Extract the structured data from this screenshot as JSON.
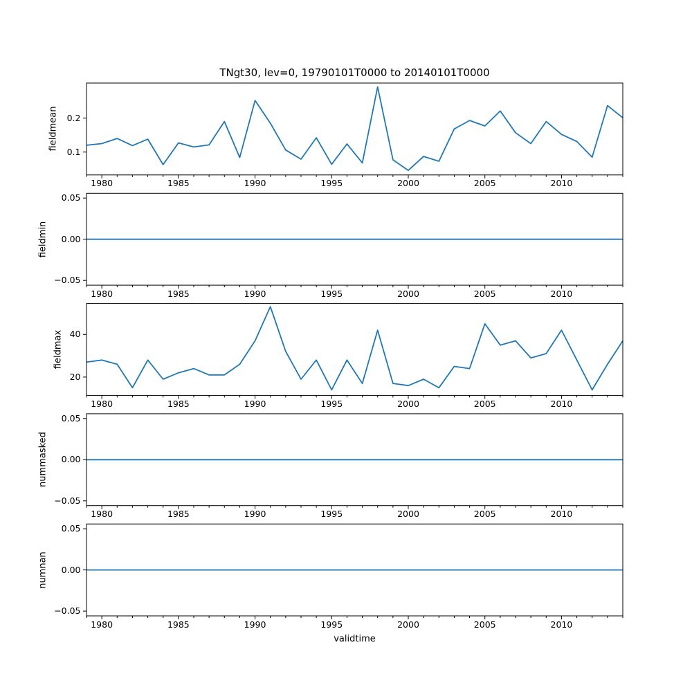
{
  "figure": {
    "title": "TNgt30, lev=0, 19790101T0000 to 20140101T0000",
    "background_color": "#ffffff",
    "line_color": "#1f77b4",
    "axis_color": "#000000"
  },
  "x": {
    "label": "validtime",
    "lim": [
      1979,
      2014
    ],
    "values": [
      1979,
      1980,
      1981,
      1982,
      1983,
      1984,
      1985,
      1986,
      1987,
      1988,
      1989,
      1990,
      1991,
      1992,
      1993,
      1994,
      1995,
      1996,
      1997,
      1998,
      1999,
      2000,
      2001,
      2002,
      2003,
      2004,
      2005,
      2006,
      2007,
      2008,
      2009,
      2010,
      2011,
      2012,
      2013,
      2014
    ],
    "major_ticks": [
      1980,
      1985,
      1990,
      1995,
      2000,
      2005,
      2010
    ],
    "tick_labels": [
      "1980",
      "1985",
      "1990",
      "1995",
      "2000",
      "2005",
      "2010"
    ],
    "minor_tick_step": 1
  },
  "chart_data": [
    {
      "type": "line",
      "name": "fieldmean",
      "ylabel": "fieldmean",
      "ylim": [
        0.0325,
        0.3035
      ],
      "yticks": [
        0.1,
        0.2
      ],
      "ytick_labels": [
        "0.1",
        "0.2"
      ],
      "values": [
        0.12,
        0.125,
        0.14,
        0.119,
        0.138,
        0.063,
        0.127,
        0.115,
        0.121,
        0.19,
        0.084,
        0.252,
        0.185,
        0.106,
        0.079,
        0.142,
        0.064,
        0.124,
        0.068,
        0.292,
        0.077,
        0.046,
        0.087,
        0.073,
        0.168,
        0.193,
        0.177,
        0.221,
        0.157,
        0.125,
        0.19,
        0.152,
        0.131,
        0.085,
        0.237,
        0.201
      ]
    },
    {
      "type": "line",
      "name": "fieldmin",
      "ylabel": "fieldmin",
      "ylim": [
        -0.0558,
        0.0558
      ],
      "yticks": [
        -0.05,
        0.0,
        0.05
      ],
      "ytick_labels": [
        "−0.05",
        "0.00",
        "0.05"
      ],
      "values": [
        0,
        0,
        0,
        0,
        0,
        0,
        0,
        0,
        0,
        0,
        0,
        0,
        0,
        0,
        0,
        0,
        0,
        0,
        0,
        0,
        0,
        0,
        0,
        0,
        0,
        0,
        0,
        0,
        0,
        0,
        0,
        0,
        0,
        0,
        0,
        0
      ]
    },
    {
      "type": "line",
      "name": "fieldmax",
      "ylabel": "fieldmax",
      "ylim": [
        11.4,
        54.5
      ],
      "yticks": [
        20,
        40
      ],
      "ytick_labels": [
        "20",
        "40"
      ],
      "values": [
        27,
        28,
        26,
        15,
        28,
        19,
        22,
        24,
        21,
        21,
        26,
        37,
        53,
        32,
        19,
        28,
        14,
        28,
        17,
        42,
        17,
        16,
        19,
        15,
        25,
        24,
        45,
        35,
        37,
        29,
        31,
        42,
        28,
        14,
        26,
        37
      ]
    },
    {
      "type": "line",
      "name": "nummasked",
      "ylabel": "nummasked",
      "ylim": [
        -0.0558,
        0.0558
      ],
      "yticks": [
        -0.05,
        0.0,
        0.05
      ],
      "ytick_labels": [
        "−0.05",
        "0.00",
        "0.05"
      ],
      "values": [
        0,
        0,
        0,
        0,
        0,
        0,
        0,
        0,
        0,
        0,
        0,
        0,
        0,
        0,
        0,
        0,
        0,
        0,
        0,
        0,
        0,
        0,
        0,
        0,
        0,
        0,
        0,
        0,
        0,
        0,
        0,
        0,
        0,
        0,
        0,
        0
      ]
    },
    {
      "type": "line",
      "name": "numnan",
      "ylabel": "numnan",
      "ylim": [
        -0.0558,
        0.0558
      ],
      "yticks": [
        -0.05,
        0.0,
        0.05
      ],
      "ytick_labels": [
        "−0.05",
        "0.00",
        "0.05"
      ],
      "values": [
        0,
        0,
        0,
        0,
        0,
        0,
        0,
        0,
        0,
        0,
        0,
        0,
        0,
        0,
        0,
        0,
        0,
        0,
        0,
        0,
        0,
        0,
        0,
        0,
        0,
        0,
        0,
        0,
        0,
        0,
        0,
        0,
        0,
        0,
        0,
        0
      ]
    }
  ]
}
